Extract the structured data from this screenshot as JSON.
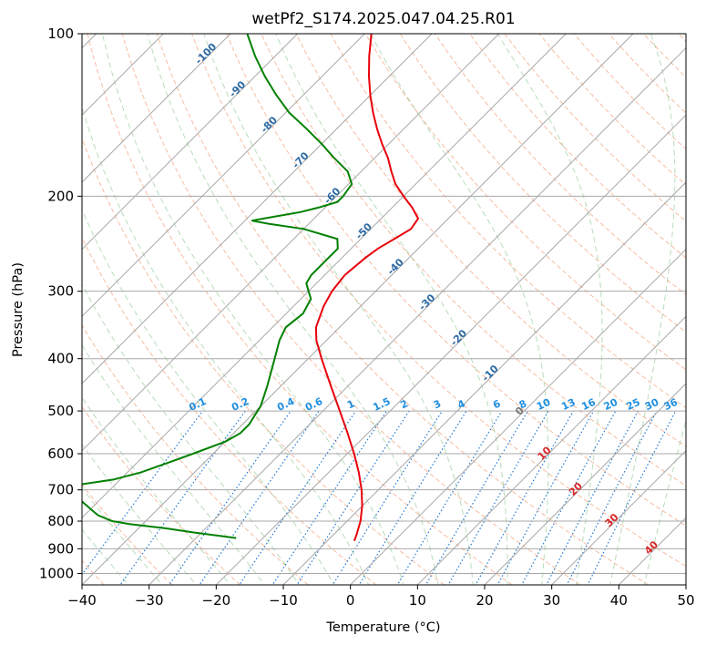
{
  "chart_data": {
    "type": "skew-t log-p",
    "title": "wetPf2_S174.2025.047.04.25.R01",
    "xlabel": "Temperature (°C)",
    "ylabel": "Pressure (hPa)",
    "xlim": [
      -40,
      50
    ],
    "ylim_hpa": [
      1050,
      100
    ],
    "y_scale": "log",
    "grid": true,
    "x_ticks": [
      -40,
      -30,
      -20,
      -10,
      0,
      10,
      20,
      30,
      40,
      50
    ],
    "x_tick_labels": [
      "−40",
      "−30",
      "−20",
      "−10",
      "0",
      "10",
      "20",
      "30",
      "40",
      "50"
    ],
    "y_ticks": [
      1000,
      900,
      800,
      700,
      600,
      500,
      400,
      300,
      200,
      100
    ],
    "y_tick_labels": [
      "1000",
      "900",
      "800",
      "700",
      "600",
      "500",
      "400",
      "300",
      "200",
      "100"
    ],
    "temperature_color": "#e8000b",
    "dewpoint_color": "#008000",
    "temperature": {
      "p": [
        870,
        850,
        800,
        750,
        700,
        650,
        600,
        550,
        500,
        450,
        400,
        370,
        350,
        320,
        300,
        280,
        260,
        250,
        240,
        230,
        220,
        210,
        200,
        190,
        180,
        170,
        160,
        150,
        140,
        130,
        120,
        110,
        100
      ],
      "t": [
        -6,
        -6.5,
        -8,
        -10,
        -12.5,
        -15.5,
        -19,
        -23,
        -27.5,
        -32.5,
        -38,
        -41.5,
        -43.5,
        -45.5,
        -46.5,
        -47,
        -46.5,
        -46,
        -45,
        -44,
        -44.5,
        -47,
        -50,
        -53,
        -55.5,
        -58,
        -61,
        -64,
        -67,
        -70,
        -73,
        -76,
        -79
      ]
    },
    "dewpoint": {
      "p": [
        860,
        840,
        825,
        810,
        800,
        780,
        760,
        730,
        715,
        700,
        690,
        670,
        650,
        620,
        600,
        570,
        550,
        530,
        510,
        490,
        450,
        400,
        370,
        350,
        330,
        310,
        300,
        290,
        280,
        260,
        250,
        240,
        230,
        225,
        222,
        218,
        214,
        210,
        205,
        200,
        190,
        180,
        170,
        160,
        150,
        140,
        130,
        120,
        110,
        100
      ],
      "td": [
        -24,
        -31,
        -36,
        -42,
        -45,
        -48,
        -50,
        -53,
        -54,
        -55,
        -57,
        -51,
        -48,
        -45,
        -43,
        -40,
        -39,
        -39,
        -39.5,
        -40,
        -42,
        -45,
        -47,
        -48,
        -47.5,
        -48.5,
        -50,
        -51.5,
        -52,
        -52,
        -52,
        -53.5,
        -60,
        -66,
        -69,
        -66,
        -63,
        -61,
        -59,
        -59,
        -59.5,
        -62,
        -66,
        -70,
        -74.5,
        -79.5,
        -84,
        -88.5,
        -93,
        -97.5
      ]
    },
    "moist_adiabat_labels": [
      "-100",
      "-90",
      "-80",
      "-70",
      "-60",
      "-50",
      "-40",
      "-30",
      "-20",
      "-10",
      "0",
      "10",
      "20",
      "30",
      "40"
    ],
    "mixing_ratio_labels": [
      "0.1",
      "0.2",
      "0.4",
      "0.6",
      "1",
      "1.5",
      "2",
      "3",
      "4",
      "6",
      "8",
      "10",
      "13",
      "16",
      "20",
      "25",
      "30",
      "36"
    ]
  }
}
